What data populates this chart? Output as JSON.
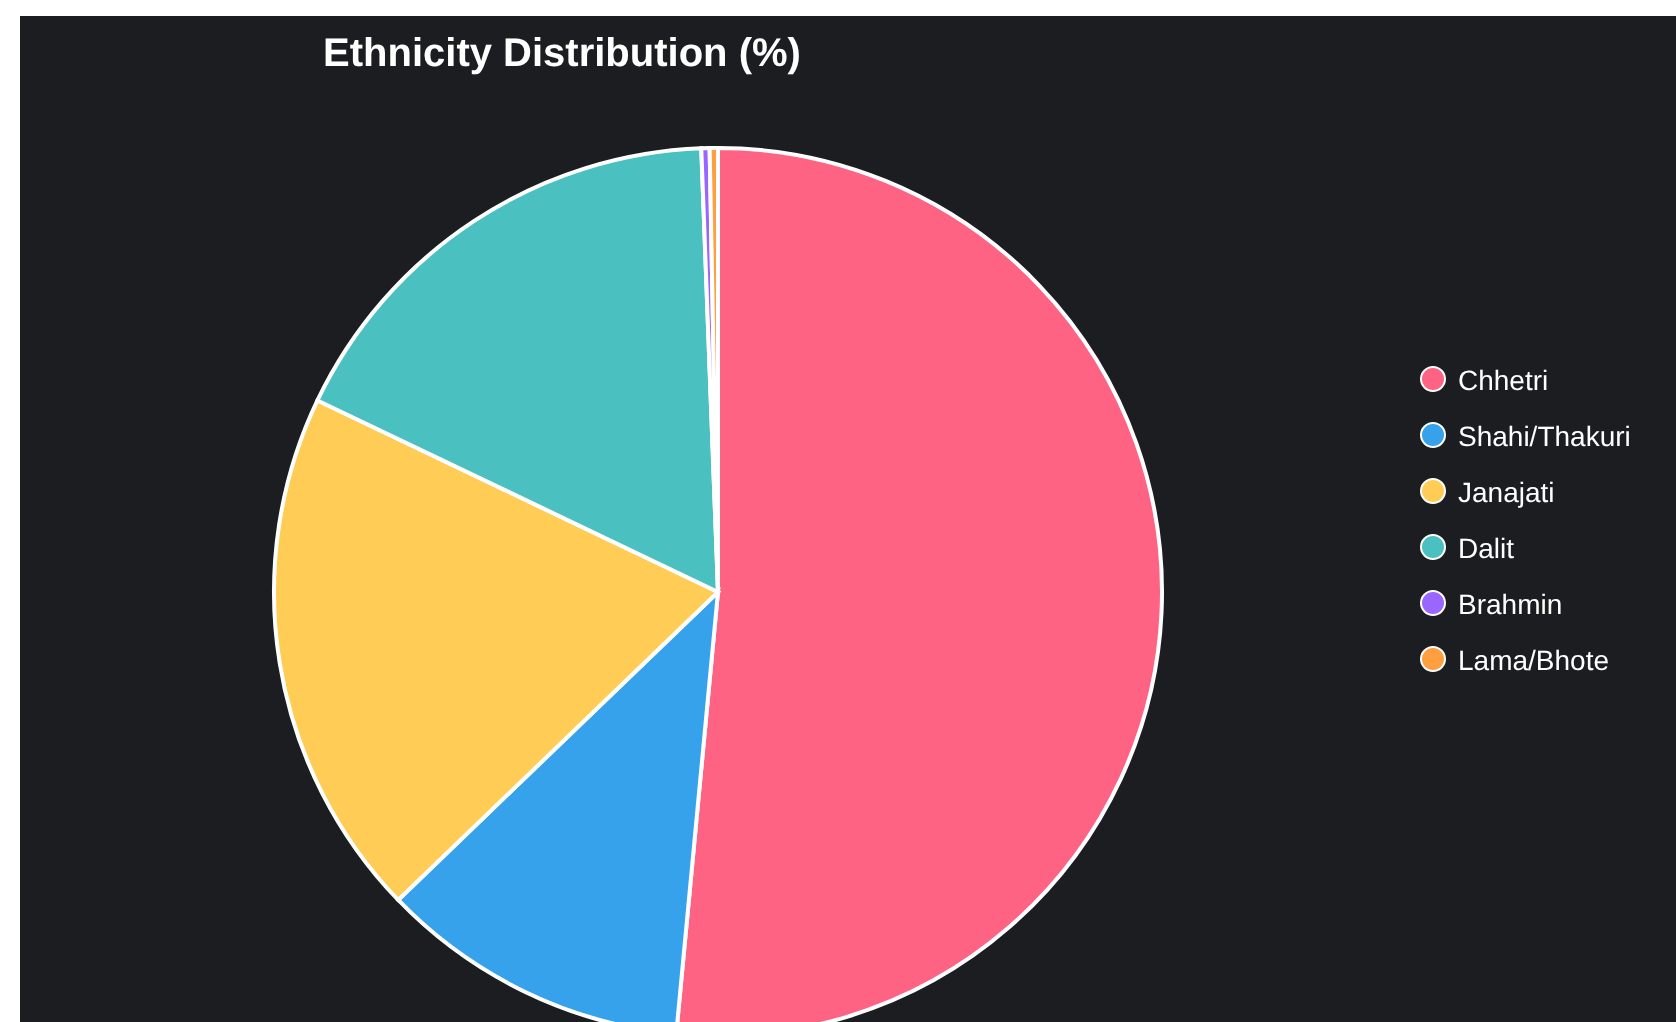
{
  "chart_data": {
    "type": "pie",
    "title": "Ethnicity Distribution (%)",
    "categories": [
      "Chhetri",
      "Shahi/Thakuri",
      "Janajati",
      "Dalit",
      "Brahmin",
      "Lama/Bhote"
    ],
    "values": [
      51.5,
      11.3,
      19.3,
      17.3,
      0.3,
      0.3
    ],
    "colors": [
      "#ff6384",
      "#36a2eb",
      "#ffcd56",
      "#4bc0c0",
      "#9966ff",
      "#ff9f40"
    ],
    "legend": "right"
  }
}
